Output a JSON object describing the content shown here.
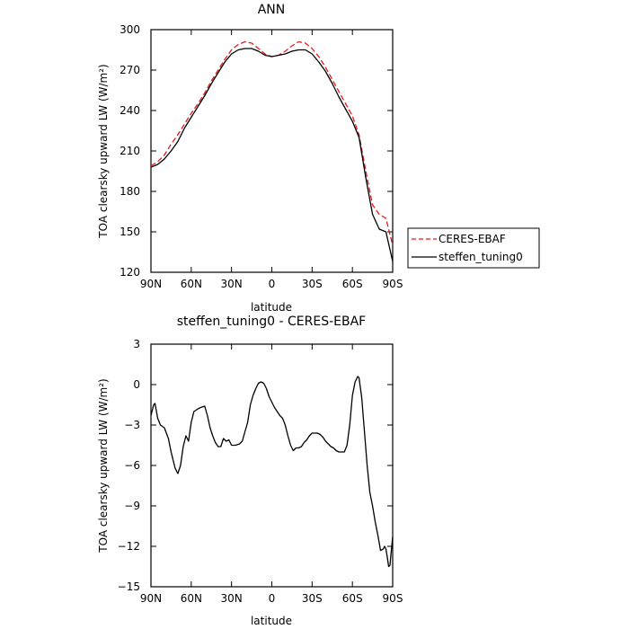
{
  "chart_data": [
    {
      "type": "line",
      "title": "ANN",
      "xlabel": "latitude",
      "ylabel": "TOA clearsky upward LW (W/m²)",
      "xlim": [
        90,
        -90
      ],
      "ylim": [
        120,
        300
      ],
      "x_ticks": [
        90,
        60,
        30,
        0,
        -30,
        -60,
        -90
      ],
      "x_tick_labels": [
        "90N",
        "60N",
        "30N",
        "0",
        "30S",
        "60S",
        "90S"
      ],
      "y_ticks": [
        120,
        150,
        180,
        210,
        240,
        270,
        300
      ],
      "y_tick_labels": [
        "120",
        "150",
        "180",
        "210",
        "240",
        "270",
        "300"
      ],
      "grid": false,
      "legend_position": "right",
      "series": [
        {
          "name": "CERES-EBAF",
          "color": "#e41a1c",
          "dash": "dashed",
          "points": [
            [
              90,
              199
            ],
            [
              85,
              202
            ],
            [
              80,
              207
            ],
            [
              75,
              215
            ],
            [
              70,
              222
            ],
            [
              65,
              230
            ],
            [
              60,
              238
            ],
            [
              55,
              245
            ],
            [
              50,
              253
            ],
            [
              45,
              262
            ],
            [
              40,
              270
            ],
            [
              35,
              278
            ],
            [
              30,
              285
            ],
            [
              25,
              289
            ],
            [
              20,
              291
            ],
            [
              15,
              290
            ],
            [
              10,
              286
            ],
            [
              5,
              282
            ],
            [
              0,
              280
            ],
            [
              -5,
              281
            ],
            [
              -10,
              284
            ],
            [
              -15,
              288
            ],
            [
              -20,
              291
            ],
            [
              -25,
              290
            ],
            [
              -30,
              286
            ],
            [
              -35,
              280
            ],
            [
              -40,
              272
            ],
            [
              -45,
              263
            ],
            [
              -50,
              254
            ],
            [
              -55,
              245
            ],
            [
              -60,
              236
            ],
            [
              -65,
              222
            ],
            [
              -70,
              195
            ],
            [
              -75,
              170
            ],
            [
              -80,
              163
            ],
            [
              -85,
              160
            ],
            [
              -90,
              140
            ]
          ]
        },
        {
          "name": "steffen_tuning0",
          "color": "#000000",
          "dash": "solid",
          "points": [
            [
              90,
              198
            ],
            [
              85,
              200
            ],
            [
              80,
              204
            ],
            [
              75,
              210
            ],
            [
              70,
              217
            ],
            [
              65,
              227
            ],
            [
              60,
              235
            ],
            [
              55,
              243
            ],
            [
              50,
              251
            ],
            [
              45,
              260
            ],
            [
              40,
              268
            ],
            [
              35,
              276
            ],
            [
              30,
              282
            ],
            [
              25,
              285
            ],
            [
              20,
              286
            ],
            [
              15,
              286
            ],
            [
              10,
              284
            ],
            [
              5,
              281
            ],
            [
              0,
              280
            ],
            [
              -5,
              281
            ],
            [
              -10,
              282
            ],
            [
              -15,
              284
            ],
            [
              -20,
              285
            ],
            [
              -25,
              285
            ],
            [
              -30,
              282
            ],
            [
              -35,
              276
            ],
            [
              -40,
              269
            ],
            [
              -45,
              260
            ],
            [
              -50,
              250
            ],
            [
              -55,
              241
            ],
            [
              -60,
              232
            ],
            [
              -65,
              220
            ],
            [
              -70,
              190
            ],
            [
              -75,
              163
            ],
            [
              -80,
              152
            ],
            [
              -85,
              150
            ],
            [
              -90,
              128
            ]
          ]
        }
      ]
    },
    {
      "type": "line",
      "title": "steffen_tuning0 - CERES-EBAF",
      "xlabel": "latitude",
      "ylabel": "TOA clearsky upward LW (W/m²)",
      "xlim": [
        90,
        -90
      ],
      "ylim": [
        -15,
        3
      ],
      "x_ticks": [
        90,
        60,
        30,
        0,
        -30,
        -60,
        -90
      ],
      "x_tick_labels": [
        "90N",
        "60N",
        "30N",
        "0",
        "30S",
        "60S",
        "90S"
      ],
      "y_ticks": [
        -15,
        -12,
        -9,
        -6,
        -3,
        0,
        3
      ],
      "y_tick_labels": [
        "−15",
        "−12",
        "−9",
        "−6",
        "−3",
        "0",
        "3"
      ],
      "grid": false,
      "series": [
        {
          "color": "#000000",
          "dash": "solid",
          "points": [
            [
              90,
              -2.3
            ],
            [
              88,
              -1.5
            ],
            [
              87,
              -1.4
            ],
            [
              85,
              -2.5
            ],
            [
              83,
              -3.0
            ],
            [
              80,
              -3.2
            ],
            [
              77,
              -4.0
            ],
            [
              75,
              -5.0
            ],
            [
              72,
              -6.2
            ],
            [
              70,
              -6.6
            ],
            [
              68,
              -6.0
            ],
            [
              66,
              -4.6
            ],
            [
              64,
              -3.8
            ],
            [
              62,
              -4.2
            ],
            [
              60,
              -2.8
            ],
            [
              58,
              -2.0
            ],
            [
              55,
              -1.8
            ],
            [
              53,
              -1.7
            ],
            [
              50,
              -1.6
            ],
            [
              48,
              -2.3
            ],
            [
              46,
              -3.2
            ],
            [
              44,
              -3.8
            ],
            [
              42,
              -4.3
            ],
            [
              40,
              -4.6
            ],
            [
              38,
              -4.6
            ],
            [
              36,
              -4.0
            ],
            [
              34,
              -4.2
            ],
            [
              32,
              -4.1
            ],
            [
              30,
              -4.5
            ],
            [
              27,
              -4.5
            ],
            [
              24,
              -4.4
            ],
            [
              22,
              -4.2
            ],
            [
              20,
              -3.5
            ],
            [
              18,
              -2.8
            ],
            [
              16,
              -1.5
            ],
            [
              14,
              -0.8
            ],
            [
              12,
              -0.3
            ],
            [
              10,
              0.1
            ],
            [
              8,
              0.2
            ],
            [
              6,
              0.1
            ],
            [
              4,
              -0.3
            ],
            [
              2,
              -0.9
            ],
            [
              0,
              -1.3
            ],
            [
              -2,
              -1.7
            ],
            [
              -4,
              -2.0
            ],
            [
              -6,
              -2.3
            ],
            [
              -8,
              -2.5
            ],
            [
              -10,
              -3.0
            ],
            [
              -12,
              -3.8
            ],
            [
              -14,
              -4.5
            ],
            [
              -16,
              -4.9
            ],
            [
              -18,
              -4.7
            ],
            [
              -20,
              -4.7
            ],
            [
              -22,
              -4.6
            ],
            [
              -24,
              -4.3
            ],
            [
              -26,
              -4.1
            ],
            [
              -28,
              -3.8
            ],
            [
              -30,
              -3.6
            ],
            [
              -32,
              -3.6
            ],
            [
              -34,
              -3.6
            ],
            [
              -36,
              -3.7
            ],
            [
              -38,
              -3.9
            ],
            [
              -40,
              -4.2
            ],
            [
              -42,
              -4.4
            ],
            [
              -44,
              -4.6
            ],
            [
              -46,
              -4.7
            ],
            [
              -48,
              -4.9
            ],
            [
              -50,
              -5.0
            ],
            [
              -52,
              -5.0
            ],
            [
              -54,
              -5.0
            ],
            [
              -56,
              -4.5
            ],
            [
              -58,
              -3.0
            ],
            [
              -60,
              -0.8
            ],
            [
              -62,
              0.2
            ],
            [
              -64,
              0.6
            ],
            [
              -65,
              0.5
            ],
            [
              -67,
              -1.0
            ],
            [
              -69,
              -3.5
            ],
            [
              -71,
              -6.0
            ],
            [
              -73,
              -8.0
            ],
            [
              -75,
              -9.0
            ],
            [
              -77,
              -10.2
            ],
            [
              -79,
              -11.2
            ],
            [
              -81,
              -12.3
            ],
            [
              -83,
              -12.2
            ],
            [
              -84,
              -12.0
            ],
            [
              -85,
              -12.2
            ],
            [
              -86,
              -12.8
            ],
            [
              -87,
              -13.5
            ],
            [
              -88,
              -13.4
            ],
            [
              -89,
              -12.3
            ],
            [
              -90,
              -11.3
            ]
          ]
        }
      ]
    }
  ]
}
